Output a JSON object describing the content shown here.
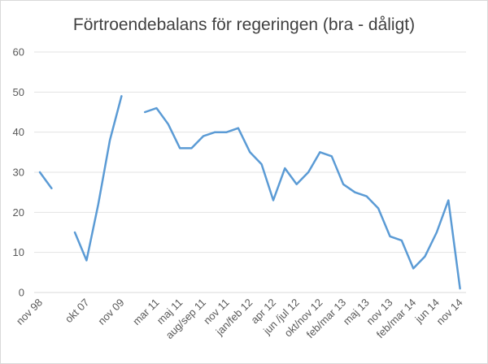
{
  "chart_data": {
    "type": "line",
    "title": "Förtroendebalans för regeringen (bra - dåligt)",
    "xlabel": "",
    "ylabel": "",
    "ylim": [
      0,
      60
    ],
    "y_ticks": [
      0,
      10,
      20,
      30,
      40,
      50,
      60
    ],
    "grid": true,
    "legend": "none",
    "color": "#5b9bd5",
    "x_tick_labels": [
      "nov 98",
      "okt 07",
      "nov 09",
      "mar 11",
      "maj 11",
      "aug/sep 11",
      "nov 11",
      "jan/feb 12",
      "apr 12",
      "jun /jul 12",
      "okt/nov 12",
      "feb/mar 13",
      "maj 13",
      "nov 13",
      "feb/mar 14",
      "jun 14",
      "nov 14"
    ],
    "points": [
      {
        "label": "nov 98",
        "value": 30
      },
      {
        "label": "",
        "value": 26
      },
      {
        "label": "",
        "value": null
      },
      {
        "label": "",
        "value": 15
      },
      {
        "label": "okt 07",
        "value": 8
      },
      {
        "label": "",
        "value": 22
      },
      {
        "label": "",
        "value": 38
      },
      {
        "label": "nov 09",
        "value": 49
      },
      {
        "label": "",
        "value": null
      },
      {
        "label": "",
        "value": 45
      },
      {
        "label": "mar 11",
        "value": 46
      },
      {
        "label": "",
        "value": 42
      },
      {
        "label": "maj 11",
        "value": 36
      },
      {
        "label": "",
        "value": 36
      },
      {
        "label": "aug/sep 11",
        "value": 39
      },
      {
        "label": "",
        "value": 40
      },
      {
        "label": "nov 11",
        "value": 40
      },
      {
        "label": "",
        "value": 41
      },
      {
        "label": "jan/feb 12",
        "value": 35
      },
      {
        "label": "",
        "value": 32
      },
      {
        "label": "apr 12",
        "value": 23
      },
      {
        "label": "",
        "value": 31
      },
      {
        "label": "jun /jul 12",
        "value": 27
      },
      {
        "label": "",
        "value": 30
      },
      {
        "label": "okt/nov 12",
        "value": 35
      },
      {
        "label": "",
        "value": 34
      },
      {
        "label": "feb/mar 13",
        "value": 27
      },
      {
        "label": "",
        "value": 25
      },
      {
        "label": "maj 13",
        "value": 24
      },
      {
        "label": "",
        "value": 21
      },
      {
        "label": "nov 13",
        "value": 14
      },
      {
        "label": "",
        "value": 13
      },
      {
        "label": "feb/mar 14",
        "value": 6
      },
      {
        "label": "",
        "value": 9
      },
      {
        "label": "jun 14",
        "value": 15
      },
      {
        "label": "",
        "value": 23
      },
      {
        "label": "nov 14",
        "value": 1
      }
    ]
  }
}
